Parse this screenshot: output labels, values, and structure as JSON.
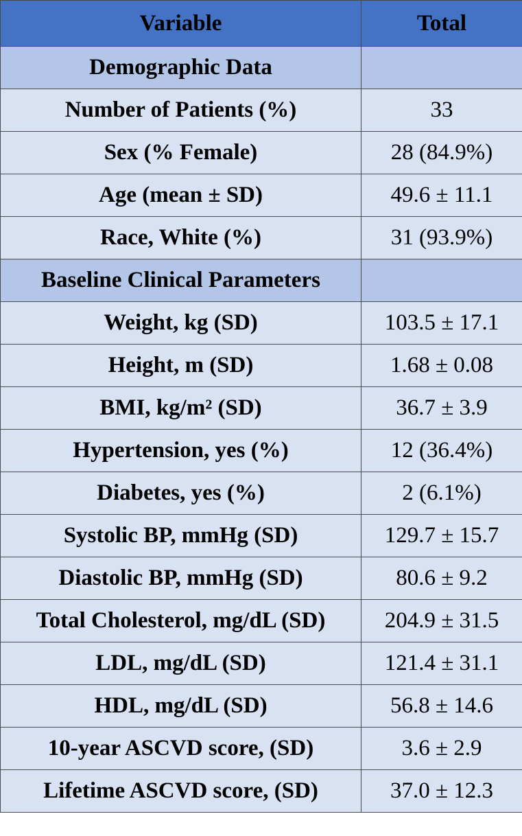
{
  "table": {
    "headers": [
      "Variable",
      "Total"
    ],
    "sections": [
      {
        "title": "Demographic Data",
        "rows": [
          {
            "label": "Number of Patients (%)",
            "value": "33"
          },
          {
            "label": "Sex (% Female)",
            "value": "28 (84.9%)"
          },
          {
            "label": "Age (mean ± SD)",
            "value": "49.6 ± 11.1"
          },
          {
            "label": "Race, White (%)",
            "value": "31 (93.9%)"
          }
        ]
      },
      {
        "title": "Baseline Clinical Parameters",
        "rows": [
          {
            "label": "Weight, kg (SD)",
            "value": "103.5 ± 17.1"
          },
          {
            "label": "Height, m (SD)",
            "value": "1.68 ± 0.08"
          },
          {
            "label": "BMI, kg/m² (SD)",
            "value": "36.7 ± 3.9"
          },
          {
            "label": "Hypertension, yes (%)",
            "value": "12 (36.4%)"
          },
          {
            "label": "Diabetes, yes (%)",
            "value": "2 (6.1%)"
          },
          {
            "label": "Systolic BP, mmHg (SD)",
            "value": "129.7 ± 15.7"
          },
          {
            "label": "Diastolic BP, mmHg (SD)",
            "value": "80.6 ± 9.2"
          },
          {
            "label": "Total Cholesterol, mg/dL (SD)",
            "value": "204.9 ± 31.5"
          },
          {
            "label": "LDL, mg/dL (SD)",
            "value": "121.4 ± 31.1"
          },
          {
            "label": "HDL, mg/dL (SD)",
            "value": "56.8 ± 14.6"
          },
          {
            "label": "10-year ASCVD score, (SD)",
            "value": "3.6 ± 2.9"
          },
          {
            "label": "Lifetime ASCVD score, (SD)",
            "value": "37.0 ± 12.3"
          }
        ]
      }
    ]
  }
}
